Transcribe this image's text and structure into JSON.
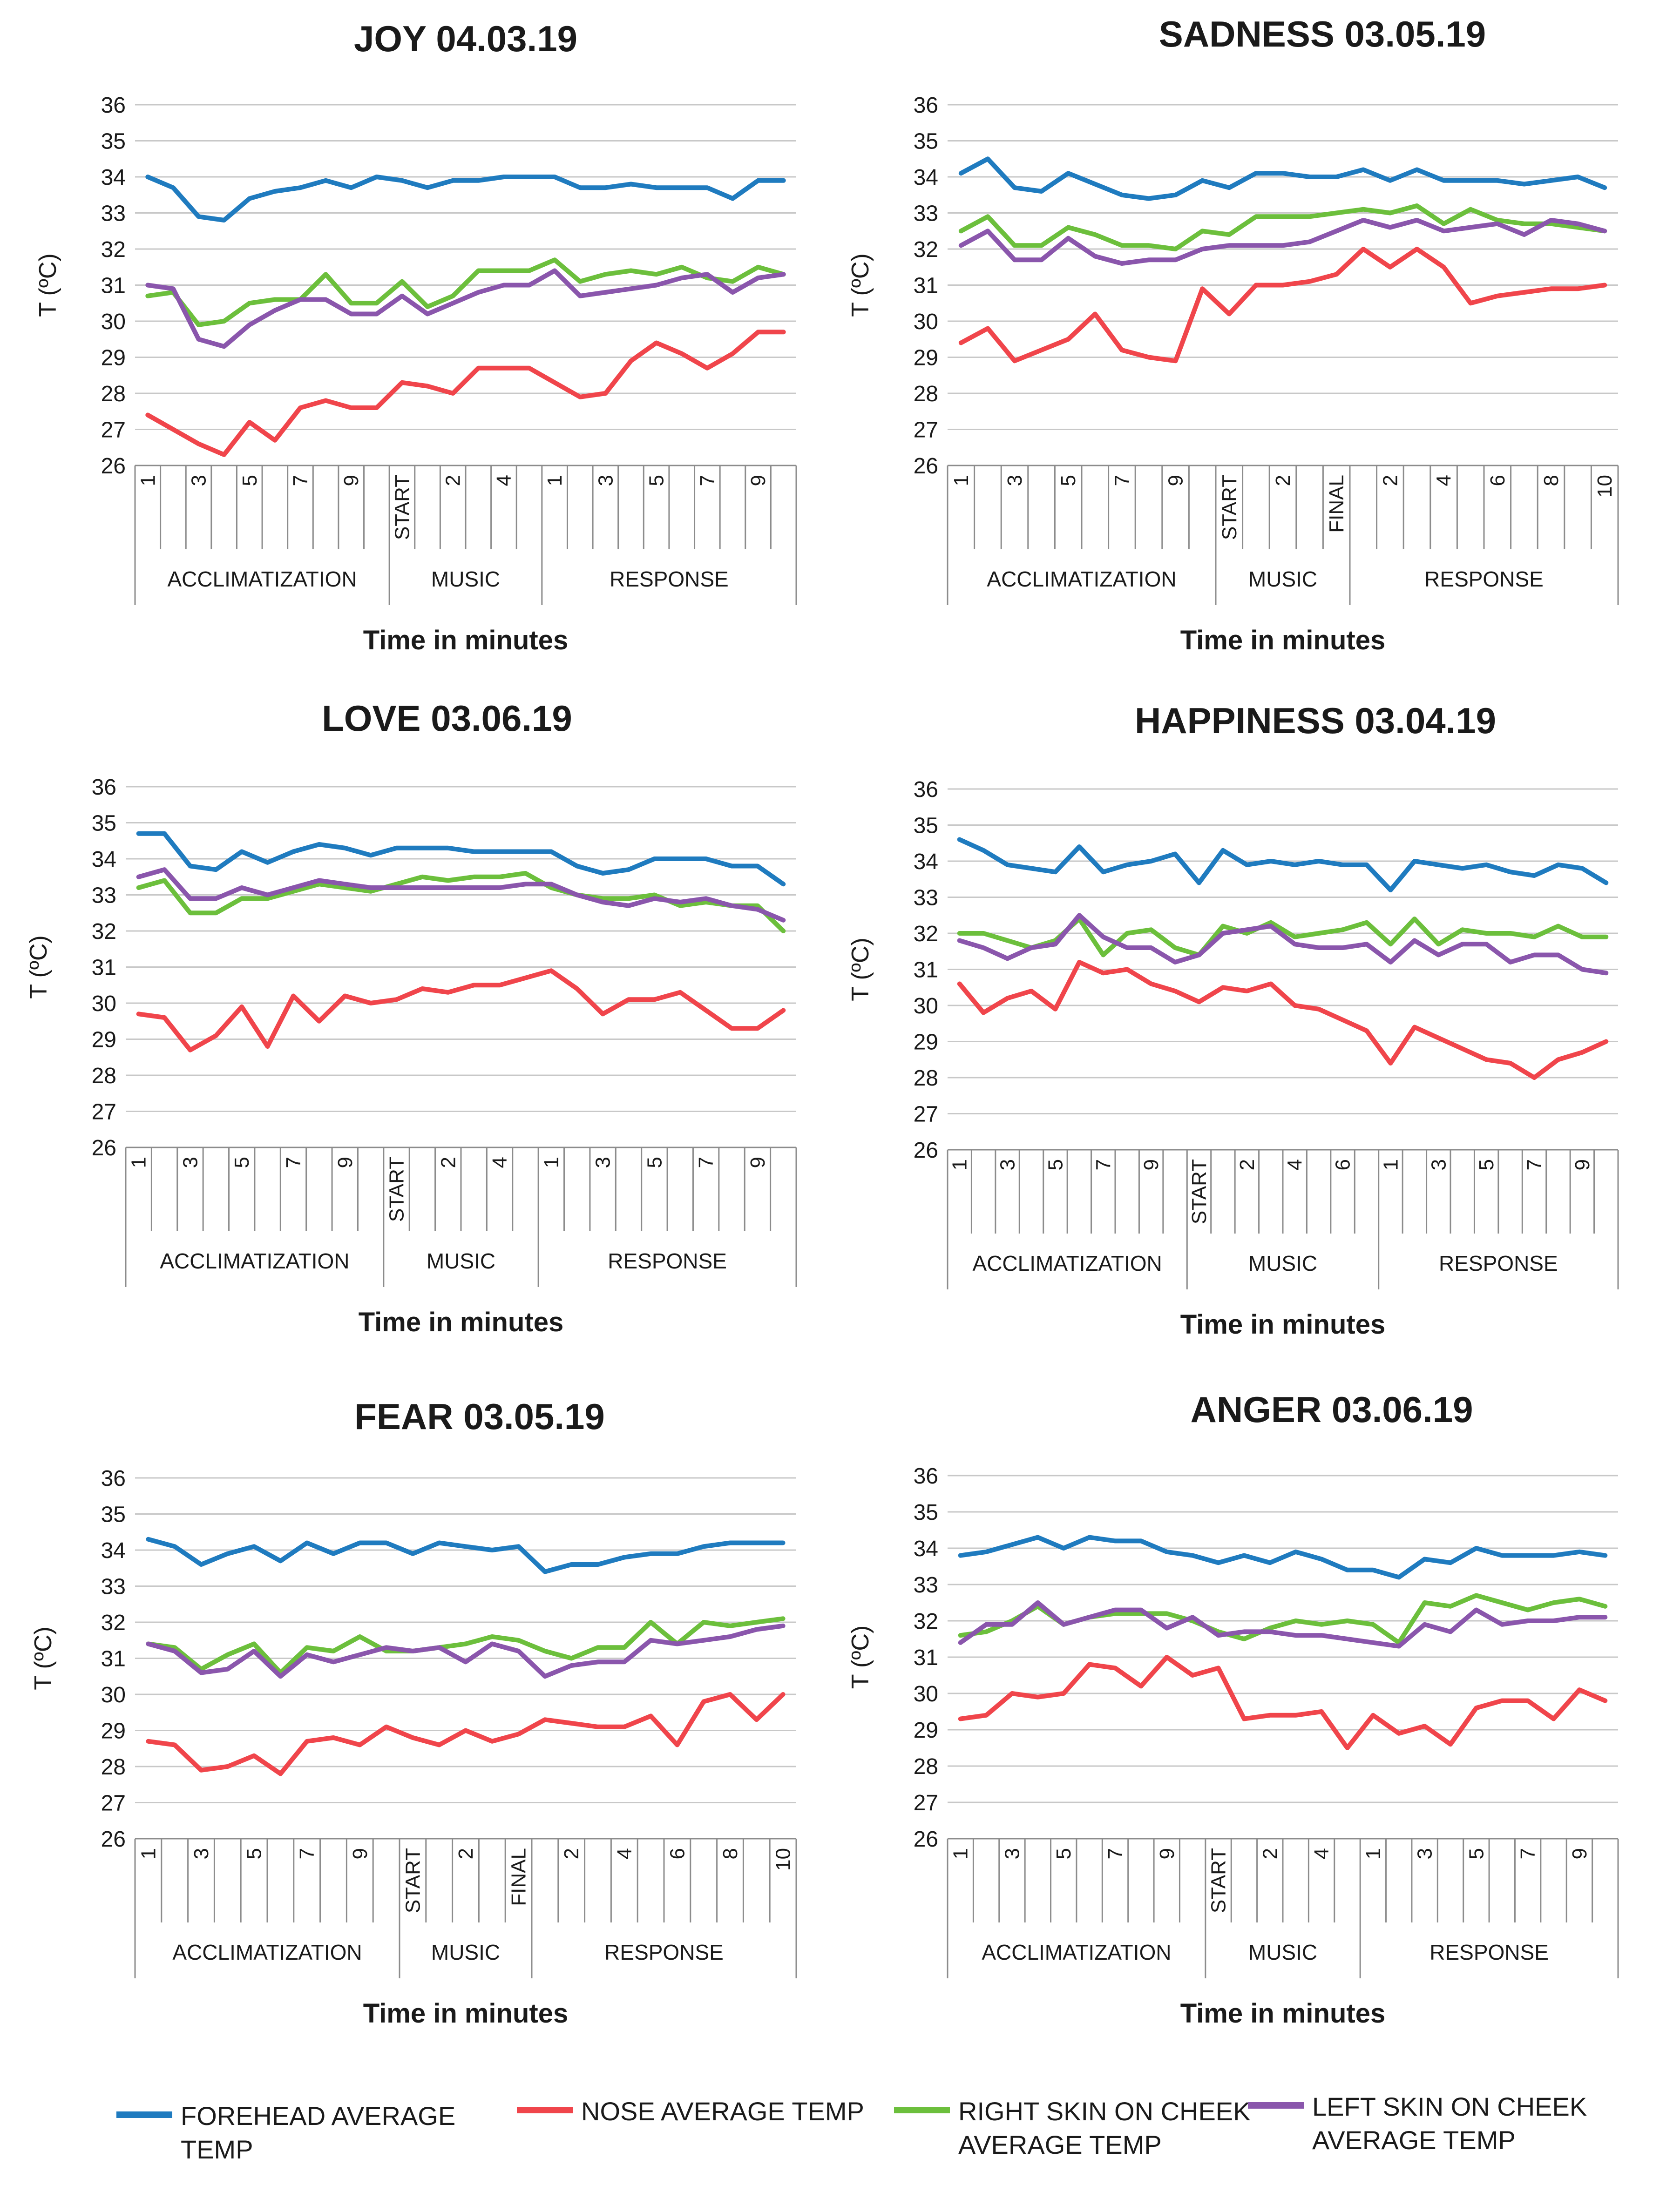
{
  "colors": {
    "forehead": "#1f7bbf",
    "nose": "#f0454b",
    "right_cheek": "#6cbf3c",
    "left_cheek": "#8a56ac",
    "grid": "#c8c8c8",
    "text": "#1a1a1a"
  },
  "legend": [
    {
      "key": "forehead",
      "label": "FOREHEAD AVERAGE\nTEMP"
    },
    {
      "key": "nose",
      "label": "NOSE AVERAGE TEMP"
    },
    {
      "key": "right_cheek",
      "label": "RIGHT SKIN ON CHEEK\nAVERAGE TEMP"
    },
    {
      "key": "left_cheek",
      "label": "LEFT SKIN ON CHEEK\nAVERAGE TEMP"
    }
  ],
  "chart_data": [
    {
      "type": "line",
      "title": "JOY 04.03.19",
      "xlabel": "Time in minutes",
      "ylabel": "T (ºC)",
      "ylim": [
        26,
        36
      ],
      "yticks": [
        26,
        27,
        28,
        29,
        30,
        31,
        32,
        33,
        34,
        35,
        36
      ],
      "grid": true,
      "x_ticks": [
        "1",
        "",
        "3",
        "",
        "5",
        "",
        "7",
        "",
        "9",
        "",
        "START",
        "",
        "2",
        "",
        "4",
        "",
        "1",
        "",
        "3",
        "",
        "5",
        "",
        "7",
        "",
        "9",
        ""
      ],
      "groups": [
        {
          "label": "ACCLIMATIZATION",
          "span": 10
        },
        {
          "label": "MUSIC",
          "span": 6
        },
        {
          "label": "RESPONSE",
          "span": 10
        }
      ],
      "series": [
        {
          "key": "forehead",
          "values": [
            34.0,
            33.7,
            32.9,
            32.8,
            33.4,
            33.6,
            33.7,
            33.9,
            33.7,
            34.0,
            33.9,
            33.7,
            33.9,
            33.9,
            34.0,
            34.0,
            34.0,
            33.7,
            33.7,
            33.8,
            33.7,
            33.7,
            33.7,
            33.4,
            33.9,
            33.9
          ]
        },
        {
          "key": "nose",
          "values": [
            27.4,
            27.0,
            26.6,
            26.3,
            27.2,
            26.7,
            27.6,
            27.8,
            27.6,
            27.6,
            28.3,
            28.2,
            28.0,
            28.7,
            28.7,
            28.7,
            28.3,
            27.9,
            28.0,
            28.9,
            29.4,
            29.1,
            28.7,
            29.1,
            29.7,
            29.7
          ]
        },
        {
          "key": "right_cheek",
          "values": [
            30.7,
            30.8,
            29.9,
            30.0,
            30.5,
            30.6,
            30.6,
            31.3,
            30.5,
            30.5,
            31.1,
            30.4,
            30.7,
            31.4,
            31.4,
            31.4,
            31.7,
            31.1,
            31.3,
            31.4,
            31.3,
            31.5,
            31.2,
            31.1,
            31.5,
            31.3
          ]
        },
        {
          "key": "left_cheek",
          "values": [
            31.0,
            30.9,
            29.5,
            29.3,
            29.9,
            30.3,
            30.6,
            30.6,
            30.2,
            30.2,
            30.7,
            30.2,
            30.5,
            30.8,
            31.0,
            31.0,
            31.4,
            30.7,
            30.8,
            30.9,
            31.0,
            31.2,
            31.3,
            30.8,
            31.2,
            31.3
          ]
        }
      ]
    },
    {
      "type": "line",
      "title": "SADNESS 03.05.19",
      "xlabel": "Time in minutes",
      "ylabel": "T (ºC)",
      "ylim": [
        26,
        36
      ],
      "yticks": [
        26,
        27,
        28,
        29,
        30,
        31,
        32,
        33,
        34,
        35,
        36
      ],
      "grid": true,
      "x_ticks": [
        "1",
        "",
        "3",
        "",
        "5",
        "",
        "7",
        "",
        "9",
        "",
        "START",
        "",
        "2",
        "",
        "FINAL",
        "",
        "2",
        "",
        "4",
        "",
        "6",
        "",
        "8",
        "",
        "10"
      ],
      "groups": [
        {
          "label": "ACCLIMATIZATION",
          "span": 10
        },
        {
          "label": "MUSIC",
          "span": 5
        },
        {
          "label": "RESPONSE",
          "span": 10
        }
      ],
      "series": [
        {
          "key": "forehead",
          "values": [
            34.1,
            34.5,
            33.7,
            33.6,
            34.1,
            33.8,
            33.5,
            33.4,
            33.5,
            33.9,
            33.7,
            34.1,
            34.1,
            34.0,
            34.0,
            34.2,
            33.9,
            34.2,
            33.9,
            33.9,
            33.9,
            33.8,
            33.9,
            34.0,
            33.7
          ]
        },
        {
          "key": "nose",
          "values": [
            29.4,
            29.8,
            28.9,
            29.2,
            29.5,
            30.2,
            29.2,
            29.0,
            28.9,
            30.9,
            30.2,
            31.0,
            31.0,
            31.1,
            31.3,
            32.0,
            31.5,
            32.0,
            31.5,
            30.5,
            30.7,
            30.8,
            30.9,
            30.9,
            31.0
          ]
        },
        {
          "key": "right_cheek",
          "values": [
            32.5,
            32.9,
            32.1,
            32.1,
            32.6,
            32.4,
            32.1,
            32.1,
            32.0,
            32.5,
            32.4,
            32.9,
            32.9,
            32.9,
            33.0,
            33.1,
            33.0,
            33.2,
            32.7,
            33.1,
            32.8,
            32.7,
            32.7,
            32.6,
            32.5
          ]
        },
        {
          "key": "left_cheek",
          "values": [
            32.1,
            32.5,
            31.7,
            31.7,
            32.3,
            31.8,
            31.6,
            31.7,
            31.7,
            32.0,
            32.1,
            32.1,
            32.1,
            32.2,
            32.5,
            32.8,
            32.6,
            32.8,
            32.5,
            32.6,
            32.7,
            32.4,
            32.8,
            32.7,
            32.5
          ]
        }
      ]
    },
    {
      "type": "line",
      "title": "LOVE 03.06.19",
      "xlabel": "Time in minutes",
      "ylabel": "T (ºC)",
      "ylim": [
        26,
        36
      ],
      "yticks": [
        26,
        27,
        28,
        29,
        30,
        31,
        32,
        33,
        34,
        35,
        36
      ],
      "grid": true,
      "x_ticks": [
        "1",
        "",
        "3",
        "",
        "5",
        "",
        "7",
        "",
        "9",
        "",
        "START",
        "",
        "2",
        "",
        "4",
        "",
        "1",
        "",
        "3",
        "",
        "5",
        "",
        "7",
        "",
        "9",
        ""
      ],
      "groups": [
        {
          "label": "ACCLIMATIZATION",
          "span": 10
        },
        {
          "label": "MUSIC",
          "span": 6
        },
        {
          "label": "RESPONSE",
          "span": 10
        }
      ],
      "series": [
        {
          "key": "forehead",
          "values": [
            34.7,
            34.7,
            33.8,
            33.7,
            34.2,
            33.9,
            34.2,
            34.4,
            34.3,
            34.1,
            34.3,
            34.3,
            34.3,
            34.2,
            34.2,
            34.2,
            34.2,
            33.8,
            33.6,
            33.7,
            34.0,
            34.0,
            34.0,
            33.8,
            33.8,
            33.3
          ]
        },
        {
          "key": "nose",
          "values": [
            29.7,
            29.6,
            28.7,
            29.1,
            29.9,
            28.8,
            30.2,
            29.5,
            30.2,
            30.0,
            30.1,
            30.4,
            30.3,
            30.5,
            30.5,
            30.7,
            30.9,
            30.4,
            29.7,
            30.1,
            30.1,
            30.3,
            29.8,
            29.3,
            29.3,
            29.8
          ]
        },
        {
          "key": "right_cheek",
          "values": [
            33.2,
            33.4,
            32.5,
            32.5,
            32.9,
            32.9,
            33.1,
            33.3,
            33.2,
            33.1,
            33.3,
            33.5,
            33.4,
            33.5,
            33.5,
            33.6,
            33.2,
            33.0,
            32.9,
            32.9,
            33.0,
            32.7,
            32.8,
            32.7,
            32.7,
            32.0
          ]
        },
        {
          "key": "left_cheek",
          "values": [
            33.5,
            33.7,
            32.9,
            32.9,
            33.2,
            33.0,
            33.2,
            33.4,
            33.3,
            33.2,
            33.2,
            33.2,
            33.2,
            33.2,
            33.2,
            33.3,
            33.3,
            33.0,
            32.8,
            32.7,
            32.9,
            32.8,
            32.9,
            32.7,
            32.6,
            32.3
          ]
        }
      ]
    },
    {
      "type": "line",
      "title": "HAPPINESS 03.04.19",
      "xlabel": "Time in minutes",
      "ylabel": "T (ºC)",
      "ylim": [
        26,
        36
      ],
      "yticks": [
        26,
        27,
        28,
        29,
        30,
        31,
        32,
        33,
        34,
        35,
        36
      ],
      "grid": true,
      "x_ticks": [
        "1",
        "",
        "3",
        "",
        "5",
        "",
        "7",
        "",
        "9",
        "",
        "START",
        "",
        "2",
        "",
        "4",
        "",
        "6",
        "",
        "1",
        "",
        "3",
        "",
        "5",
        "",
        "7",
        "",
        "9",
        ""
      ],
      "groups": [
        {
          "label": "ACCLIMATIZATION",
          "span": 10
        },
        {
          "label": "MUSIC",
          "span": 8
        },
        {
          "label": "RESPONSE",
          "span": 10
        }
      ],
      "series": [
        {
          "key": "forehead",
          "values": [
            34.6,
            34.3,
            33.9,
            33.8,
            33.7,
            34.4,
            33.7,
            33.9,
            34.0,
            34.2,
            33.4,
            34.3,
            33.9,
            34.0,
            33.9,
            34.0,
            33.9,
            33.9,
            33.2,
            34.0,
            33.9,
            33.8,
            33.9,
            33.7,
            33.6,
            33.9,
            33.8,
            33.4
          ]
        },
        {
          "key": "nose",
          "values": [
            30.6,
            29.8,
            30.2,
            30.4,
            29.9,
            31.2,
            30.9,
            31.0,
            30.6,
            30.4,
            30.1,
            30.5,
            30.4,
            30.6,
            30.0,
            29.9,
            29.6,
            29.3,
            28.4,
            29.4,
            29.1,
            28.8,
            28.5,
            28.4,
            28.0,
            28.5,
            28.7,
            29.0
          ]
        },
        {
          "key": "right_cheek",
          "values": [
            32.0,
            32.0,
            31.8,
            31.6,
            31.8,
            32.4,
            31.4,
            32.0,
            32.1,
            31.6,
            31.4,
            32.2,
            32.0,
            32.3,
            31.9,
            32.0,
            32.1,
            32.3,
            31.7,
            32.4,
            31.7,
            32.1,
            32.0,
            32.0,
            31.9,
            32.2,
            31.9,
            31.9
          ]
        },
        {
          "key": "left_cheek",
          "values": [
            31.8,
            31.6,
            31.3,
            31.6,
            31.7,
            32.5,
            31.9,
            31.6,
            31.6,
            31.2,
            31.4,
            32.0,
            32.1,
            32.2,
            31.7,
            31.6,
            31.6,
            31.7,
            31.2,
            31.8,
            31.4,
            31.7,
            31.7,
            31.2,
            31.4,
            31.4,
            31.0,
            30.9
          ]
        }
      ]
    },
    {
      "type": "line",
      "title": "FEAR 03.05.19",
      "xlabel": "Time in minutes",
      "ylabel": "T (ºC)",
      "ylim": [
        26,
        36
      ],
      "yticks": [
        26,
        27,
        28,
        29,
        30,
        31,
        32,
        33,
        34,
        35,
        36
      ],
      "grid": true,
      "x_ticks": [
        "1",
        "",
        "3",
        "",
        "5",
        "",
        "7",
        "",
        "9",
        "",
        "START",
        "",
        "2",
        "",
        "FINAL",
        "",
        "2",
        "",
        "4",
        "",
        "6",
        "",
        "8",
        "",
        "10"
      ],
      "groups": [
        {
          "label": "ACCLIMATIZATION",
          "span": 10
        },
        {
          "label": "MUSIC",
          "span": 5
        },
        {
          "label": "RESPONSE",
          "span": 10
        }
      ],
      "series": [
        {
          "key": "forehead",
          "values": [
            34.3,
            34.1,
            33.6,
            33.9,
            34.1,
            33.7,
            34.2,
            33.9,
            34.2,
            34.2,
            33.9,
            34.2,
            34.1,
            34.0,
            34.1,
            33.4,
            33.6,
            33.6,
            33.8,
            33.9,
            33.9,
            34.1,
            34.2,
            34.2,
            34.2
          ]
        },
        {
          "key": "nose",
          "values": [
            28.7,
            28.6,
            27.9,
            28.0,
            28.3,
            27.8,
            28.7,
            28.8,
            28.6,
            29.1,
            28.8,
            28.6,
            29.0,
            28.7,
            28.9,
            29.3,
            29.2,
            29.1,
            29.1,
            29.4,
            28.6,
            29.8,
            30.0,
            29.3,
            30.0
          ]
        },
        {
          "key": "right_cheek",
          "values": [
            31.4,
            31.3,
            30.7,
            31.1,
            31.4,
            30.6,
            31.3,
            31.2,
            31.6,
            31.2,
            31.2,
            31.3,
            31.4,
            31.6,
            31.5,
            31.2,
            31.0,
            31.3,
            31.3,
            32.0,
            31.4,
            32.0,
            31.9,
            32.0,
            32.1
          ]
        },
        {
          "key": "left_cheek",
          "values": [
            31.4,
            31.2,
            30.6,
            30.7,
            31.2,
            30.5,
            31.1,
            30.9,
            31.1,
            31.3,
            31.2,
            31.3,
            30.9,
            31.4,
            31.2,
            30.5,
            30.8,
            30.9,
            30.9,
            31.5,
            31.4,
            31.5,
            31.6,
            31.8,
            31.9
          ]
        }
      ]
    },
    {
      "type": "line",
      "title": "ANGER 03.06.19",
      "xlabel": "Time in minutes",
      "ylabel": "T (ºC)",
      "ylim": [
        26,
        36
      ],
      "yticks": [
        26,
        27,
        28,
        29,
        30,
        31,
        32,
        33,
        34,
        35,
        36
      ],
      "grid": true,
      "x_ticks": [
        "1",
        "",
        "3",
        "",
        "5",
        "",
        "7",
        "",
        "9",
        "",
        "START",
        "",
        "2",
        "",
        "4",
        "",
        "1",
        "",
        "3",
        "",
        "5",
        "",
        "7",
        "",
        "9",
        ""
      ],
      "groups": [
        {
          "label": "ACCLIMATIZATION",
          "span": 10
        },
        {
          "label": "MUSIC",
          "span": 6
        },
        {
          "label": "RESPONSE",
          "span": 10
        }
      ],
      "series": [
        {
          "key": "forehead",
          "values": [
            33.8,
            33.9,
            34.1,
            34.3,
            34.0,
            34.3,
            34.2,
            34.2,
            33.9,
            33.8,
            33.6,
            33.8,
            33.6,
            33.9,
            33.7,
            33.4,
            33.4,
            33.2,
            33.7,
            33.6,
            34.0,
            33.8,
            33.8,
            33.8,
            33.9,
            33.8
          ]
        },
        {
          "key": "nose",
          "values": [
            29.3,
            29.4,
            30.0,
            29.9,
            30.0,
            30.8,
            30.7,
            30.2,
            31.0,
            30.5,
            30.7,
            29.3,
            29.4,
            29.4,
            29.5,
            28.5,
            29.4,
            28.9,
            29.1,
            28.6,
            29.6,
            29.8,
            29.8,
            29.3,
            30.1,
            29.8
          ]
        },
        {
          "key": "right_cheek",
          "values": [
            31.6,
            31.7,
            32.0,
            32.4,
            31.9,
            32.1,
            32.2,
            32.2,
            32.2,
            32.0,
            31.7,
            31.5,
            31.8,
            32.0,
            31.9,
            32.0,
            31.9,
            31.4,
            32.5,
            32.4,
            32.7,
            32.5,
            32.3,
            32.5,
            32.6,
            32.4
          ]
        },
        {
          "key": "left_cheek",
          "values": [
            31.4,
            31.9,
            31.9,
            32.5,
            31.9,
            32.1,
            32.3,
            32.3,
            31.8,
            32.1,
            31.6,
            31.7,
            31.7,
            31.6,
            31.6,
            31.5,
            31.4,
            31.3,
            31.9,
            31.7,
            32.3,
            31.9,
            32.0,
            32.0,
            32.1,
            32.1
          ]
        }
      ]
    }
  ]
}
